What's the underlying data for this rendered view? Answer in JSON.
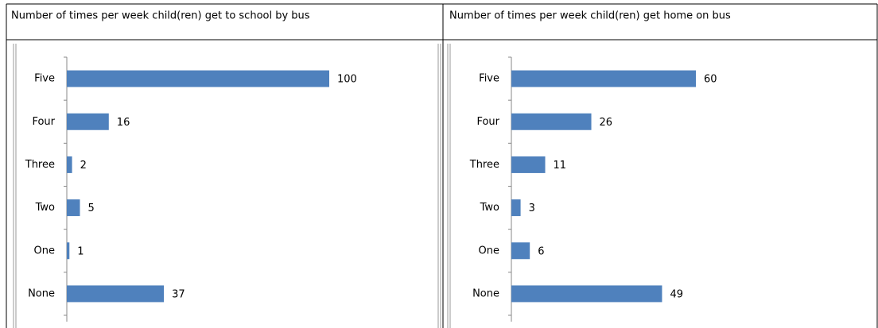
{
  "chart_data": [
    {
      "type": "bar",
      "title": "Number of times per week child(ren) get to school by bus",
      "categories": [
        "Five",
        "Four",
        "Three",
        "Two",
        "One",
        "None"
      ],
      "values": [
        100,
        16,
        2,
        5,
        1,
        37
      ],
      "color": "#4f81bd"
    },
    {
      "type": "bar",
      "title": "Number of times per week child(ren) get home on bus",
      "categories": [
        "Five",
        "Four",
        "Three",
        "Two",
        "One",
        "None"
      ],
      "values": [
        60,
        26,
        11,
        3,
        6,
        49
      ],
      "color": "#4f81bd"
    }
  ]
}
